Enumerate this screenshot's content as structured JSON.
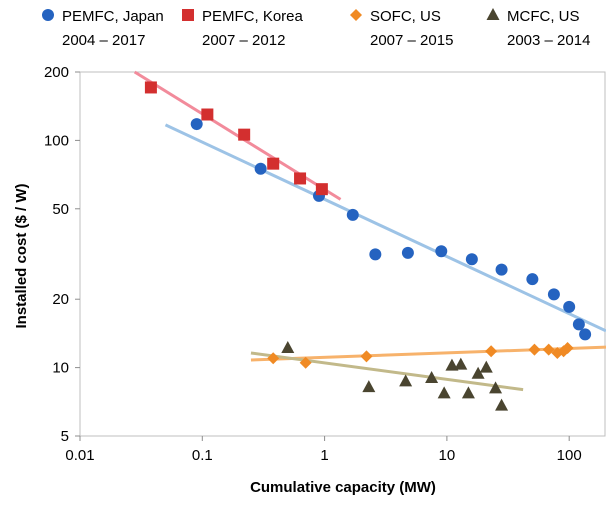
{
  "chart_data": {
    "type": "scatter",
    "xlabel": "Cumulative capacity (MW)",
    "ylabel": "Installed cost ($ / W)",
    "xscale": "log",
    "yscale": "log",
    "xlim": [
      0.01,
      200
    ],
    "ylim": [
      5,
      200
    ],
    "xticks": [
      0.01,
      0.1,
      1,
      10,
      100
    ],
    "xtick_labels": [
      "0.01",
      "0.1",
      "1",
      "10",
      "100"
    ],
    "yticks": [
      5,
      10,
      20,
      50,
      100,
      200
    ],
    "ytick_labels": [
      "5",
      "10",
      "20",
      "50",
      "100",
      "200"
    ],
    "grid": false,
    "legend_position": "top",
    "series": [
      {
        "name": "PEMFC, Japan",
        "period": "2004 – 2017",
        "marker": "circle",
        "color": "#2563c0",
        "trend_color": "#9dc3e6",
        "trend": [
          [
            0.05,
            117
          ],
          [
            200,
            14.5
          ]
        ],
        "points": [
          [
            0.09,
            118
          ],
          [
            0.3,
            75
          ],
          [
            0.9,
            57
          ],
          [
            1.7,
            47
          ],
          [
            2.6,
            31.5
          ],
          [
            4.8,
            32
          ],
          [
            9,
            32.5
          ],
          [
            16,
            30
          ],
          [
            28,
            27
          ],
          [
            50,
            24.5
          ],
          [
            75,
            21
          ],
          [
            100,
            18.5
          ],
          [
            120,
            15.5
          ],
          [
            135,
            14
          ]
        ]
      },
      {
        "name": "PEMFC, Korea",
        "period": "2007 – 2012",
        "marker": "square",
        "color": "#d32f2f",
        "trend_color": "#f28b9b",
        "trend": [
          [
            0.028,
            200
          ],
          [
            1.35,
            55
          ]
        ],
        "points": [
          [
            0.038,
            171
          ],
          [
            0.11,
            130
          ],
          [
            0.22,
            106
          ],
          [
            0.38,
            79
          ],
          [
            0.63,
            68
          ],
          [
            0.95,
            61
          ]
        ]
      },
      {
        "name": "SOFC, US",
        "period": "2007 – 2015",
        "marker": "diamond",
        "color": "#f08a24",
        "trend_color": "#f7b26b",
        "trend": [
          [
            0.25,
            10.8
          ],
          [
            200,
            12.3
          ]
        ],
        "points": [
          [
            0.38,
            11
          ],
          [
            0.7,
            10.5
          ],
          [
            2.2,
            11.2
          ],
          [
            23,
            11.8
          ],
          [
            52,
            12
          ],
          [
            68,
            12
          ],
          [
            80,
            11.6
          ],
          [
            90,
            11.8
          ],
          [
            97,
            12.2
          ]
        ]
      },
      {
        "name": "MCFC, US",
        "period": "2003 – 2014",
        "marker": "triangle",
        "color": "#4a4530",
        "trend_color": "#c2b98a",
        "trend": [
          [
            0.25,
            11.6
          ],
          [
            42,
            8.0
          ]
        ],
        "points": [
          [
            0.5,
            12.2
          ],
          [
            2.3,
            8.2
          ],
          [
            4.6,
            8.7
          ],
          [
            7.5,
            9
          ],
          [
            9.5,
            7.7
          ],
          [
            11,
            10.2
          ],
          [
            13,
            10.3
          ],
          [
            15,
            7.7
          ],
          [
            18,
            9.4
          ],
          [
            21,
            10
          ],
          [
            25,
            8.1
          ],
          [
            28,
            6.8
          ]
        ]
      }
    ]
  }
}
